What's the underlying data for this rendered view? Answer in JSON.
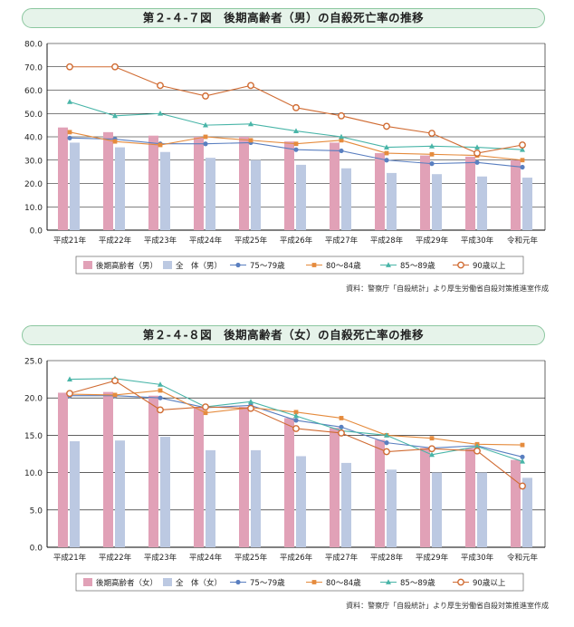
{
  "colors": {
    "bar_elderly": "#e1a1b7",
    "bar_all": "#bcc9e2",
    "l75": "#5a7fc0",
    "l80": "#e58b3d",
    "l85": "#49b5a8",
    "l90": "#d06b32",
    "grid": "#000000"
  },
  "chart_data": [
    {
      "type": "bar",
      "title": "第２-４-７図　後期高齢者（男）の自殺死亡率の推移",
      "categories": [
        "平成21年",
        "平成22年",
        "平成23年",
        "平成24年",
        "平成25年",
        "平成26年",
        "平成27年",
        "平成28年",
        "平成29年",
        "平成30年",
        "令和元年"
      ],
      "ylim": [
        0,
        80
      ],
      "yticks": [
        "0.0",
        "10.0",
        "20.0",
        "30.0",
        "40.0",
        "50.0",
        "60.0",
        "70.0",
        "80.0"
      ],
      "grid": true,
      "legend_position": "bottom",
      "bars": [
        {
          "name": "後期高齢者（男）",
          "values": [
            44.0,
            42.0,
            40.5,
            40.0,
            40.0,
            38.0,
            37.5,
            33.0,
            32.0,
            31.5,
            30.0
          ]
        },
        {
          "name": "全　体（男）",
          "values": [
            37.5,
            35.5,
            33.5,
            31.0,
            30.0,
            28.0,
            26.5,
            24.5,
            24.0,
            23.0,
            22.5
          ]
        }
      ],
      "lines": [
        {
          "name": "75～79歳",
          "marker": "circle",
          "values": [
            39.5,
            39.0,
            37.0,
            37.0,
            37.5,
            34.5,
            34.0,
            30.0,
            28.5,
            29.0,
            27.0
          ]
        },
        {
          "name": "80～84歳",
          "marker": "square",
          "values": [
            42.0,
            38.0,
            36.5,
            40.0,
            38.5,
            37.0,
            38.5,
            33.0,
            32.5,
            32.0,
            30.0
          ]
        },
        {
          "name": "85～89歳",
          "marker": "triangle",
          "values": [
            55.0,
            49.0,
            50.0,
            45.0,
            45.5,
            42.5,
            40.0,
            35.5,
            36.0,
            35.5,
            34.5
          ]
        },
        {
          "name": "90歳以上",
          "marker": "open-circle",
          "values": [
            70.0,
            70.0,
            62.0,
            57.5,
            62.0,
            52.5,
            49.0,
            44.5,
            41.5,
            33.0,
            36.5
          ]
        }
      ],
      "source": "資料：警察庁「自殺統計」より厚生労働省自殺対策推進室作成"
    },
    {
      "type": "bar",
      "title": "第２-４-８図　後期高齢者（女）の自殺死亡率の推移",
      "categories": [
        "平成21年",
        "平成22年",
        "平成23年",
        "平成24年",
        "平成25年",
        "平成26年",
        "平成27年",
        "平成28年",
        "平成29年",
        "平成30年",
        "令和元年"
      ],
      "ylim": [
        0,
        25
      ],
      "yticks": [
        "0.0",
        "5.0",
        "10.0",
        "15.0",
        "20.0",
        "25.0"
      ],
      "grid": true,
      "legend_position": "bottom",
      "bars": [
        {
          "name": "後期高齢者（女）",
          "values": [
            20.7,
            20.8,
            20.3,
            18.8,
            18.8,
            17.3,
            16.0,
            14.4,
            13.3,
            13.3,
            11.7
          ]
        },
        {
          "name": "全　体（女）",
          "values": [
            14.2,
            14.3,
            14.8,
            13.0,
            13.0,
            12.2,
            11.3,
            10.4,
            10.0,
            10.0,
            9.3
          ]
        }
      ],
      "lines": [
        {
          "name": "75～79歳",
          "marker": "circle",
          "values": [
            20.3,
            20.3,
            20.0,
            18.7,
            19.0,
            17.0,
            16.1,
            14.0,
            13.3,
            13.6,
            12.1
          ]
        },
        {
          "name": "80～84歳",
          "marker": "square",
          "values": [
            20.5,
            20.4,
            21.0,
            18.0,
            18.7,
            18.1,
            17.3,
            15.0,
            14.6,
            13.8,
            13.7
          ]
        },
        {
          "name": "85～89歳",
          "marker": "triangle",
          "values": [
            22.5,
            22.6,
            21.8,
            18.8,
            19.5,
            17.6,
            15.6,
            15.0,
            12.4,
            13.5,
            11.5
          ]
        },
        {
          "name": "90歳以上",
          "marker": "open-circle",
          "values": [
            20.6,
            22.3,
            18.4,
            18.8,
            18.6,
            15.9,
            15.3,
            12.8,
            13.2,
            12.9,
            8.2
          ]
        }
      ],
      "source": "資料：警察庁「自殺統計」より厚生労働省自殺対策推進室作成"
    }
  ]
}
